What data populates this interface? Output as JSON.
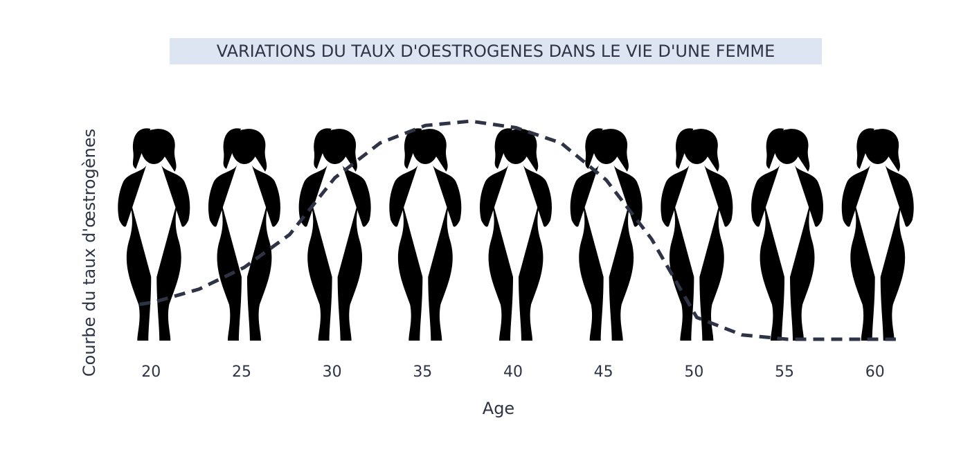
{
  "chart_data": {
    "type": "line",
    "title": "VARIATIONS DU TAUX D'OESTROGENES DANS LE VIE D'UNE FEMME",
    "x_label": "Age",
    "y_label": "Courbe du taux d'œstrogènes",
    "x": [
      19.2,
      20,
      22.5,
      25,
      27.5,
      30,
      32.5,
      35,
      37.5,
      40,
      42.5,
      45,
      47.5,
      50,
      52.5,
      55,
      57.5,
      61
    ],
    "values": [
      16,
      17,
      23,
      33,
      48,
      74,
      90,
      98,
      100,
      97,
      90,
      73,
      46,
      10,
      2,
      0,
      0,
      0
    ],
    "color": "#2e3445",
    "xlim": [
      18,
      62
    ],
    "xticks": [
      20,
      25,
      30,
      35,
      40,
      45,
      50,
      55,
      60
    ],
    "ylim": [
      0,
      100
    ]
  }
}
